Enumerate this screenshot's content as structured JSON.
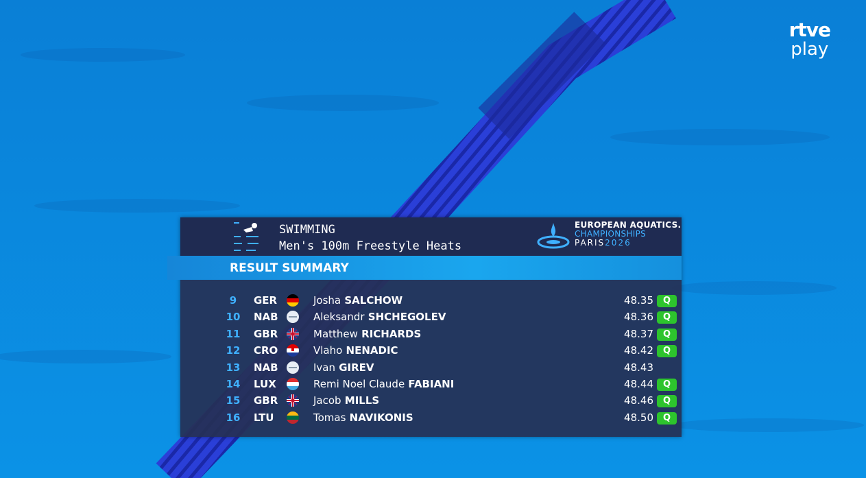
{
  "broadcaster": {
    "name": "rtve",
    "service": "play"
  },
  "header": {
    "sport": "SWIMMING",
    "event": "Men's 100m Freestyle Heats",
    "brand": {
      "line1": "EUROPEAN AQUATICS.",
      "line2": "CHAMPIONSHIPS",
      "city": "PARIS",
      "year": "2026"
    }
  },
  "section": "RESULT SUMMARY",
  "results": [
    {
      "rank": "9",
      "country": "GER",
      "first": "Josha",
      "last": "SALCHOW",
      "time": "48.35",
      "status": "Q"
    },
    {
      "rank": "10",
      "country": "NAB",
      "first": "Aleksandr",
      "last": "SHCHEGOLEV",
      "time": "48.36",
      "status": "Q"
    },
    {
      "rank": "11",
      "country": "GBR",
      "first": "Matthew",
      "last": "RICHARDS",
      "time": "48.37",
      "status": "Q"
    },
    {
      "rank": "12",
      "country": "CRO",
      "first": "Vlaho",
      "last": "NENADIC",
      "time": "48.42",
      "status": "Q"
    },
    {
      "rank": "13",
      "country": "NAB",
      "first": "Ivan",
      "last": "GIREV",
      "time": "48.43"
    },
    {
      "rank": "14",
      "country": "LUX",
      "first": "Remi Noel Claude",
      "last": "FABIANI",
      "time": "48.44",
      "status": "Q"
    },
    {
      "rank": "15",
      "country": "GBR",
      "first": "Jacob",
      "last": "MILLS",
      "time": "48.46",
      "status": "Q"
    },
    {
      "rank": "16",
      "country": "LTU",
      "first": "Tomas",
      "last": "NAVIKONIS",
      "time": "48.50",
      "status": "Q"
    }
  ]
}
